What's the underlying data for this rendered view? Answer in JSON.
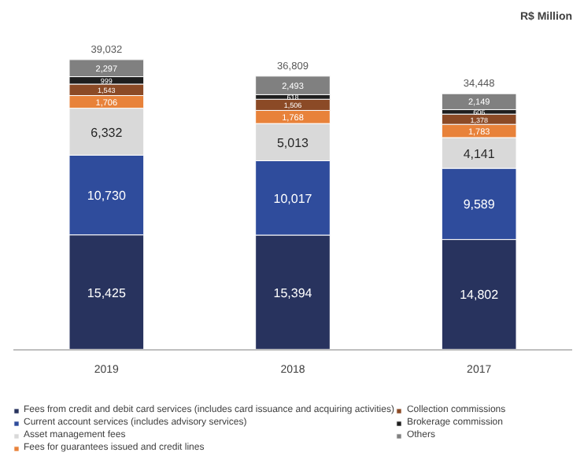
{
  "chart_data": {
    "type": "bar",
    "subtitle": "R$ Million",
    "stacked": true,
    "legend": "bottom",
    "categories": [
      "2019",
      "2018",
      "2017"
    ],
    "series": [
      {
        "name": "Fees from credit and debit card services (includes card issuance and acquiring activities)",
        "color": "#28335e",
        "values": [
          15425,
          15394,
          14802
        ],
        "value_labels": [
          "15,425",
          "15,394",
          "14,802"
        ]
      },
      {
        "name": "Current account services (includes advisory services)",
        "color": "#2f4c9c",
        "values": [
          10730,
          10017,
          9589
        ],
        "value_labels": [
          "10,730",
          "10,017",
          "9,589"
        ]
      },
      {
        "name": "Asset management fees",
        "color": "#d9d9d9",
        "values": [
          6332,
          5013,
          4141
        ],
        "value_labels": [
          "6,332",
          "5,013",
          "4,141"
        ]
      },
      {
        "name": "Fees for guarantees issued and credit lines",
        "color": "#e8823a",
        "values": [
          1706,
          1768,
          1783
        ],
        "value_labels": [
          "1,706",
          "1,768",
          "1,783"
        ]
      },
      {
        "name": "Collection commissions",
        "color": "#8b4a26",
        "values": [
          1543,
          1506,
          1378
        ],
        "value_labels": [
          "1,543",
          "1,506",
          "1,378"
        ]
      },
      {
        "name": "Brokerage commission",
        "color": "#1e1e1e",
        "values": [
          999,
          618,
          606
        ],
        "value_labels": [
          "999",
          "618",
          "606"
        ]
      },
      {
        "name": "Others",
        "color": "#808080",
        "values": [
          2297,
          2493,
          2149
        ],
        "value_labels": [
          "2,297",
          "2,493",
          "2,149"
        ]
      }
    ],
    "totals": [
      "39,032",
      "36,809",
      "34,448"
    ]
  }
}
